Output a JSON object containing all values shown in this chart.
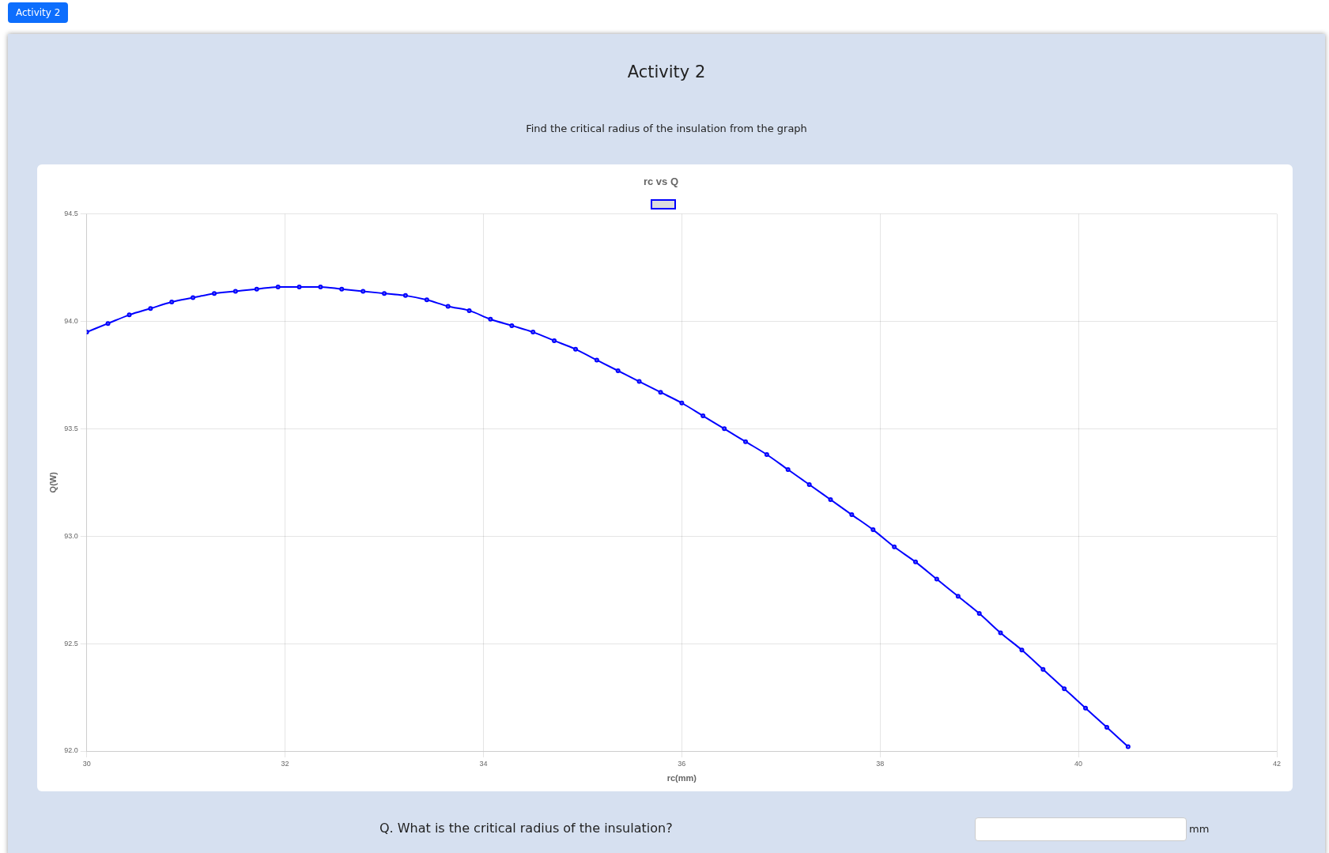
{
  "chart_data": {
    "type": "line",
    "title": "rc vs Q",
    "xlabel": "rc(mm)",
    "ylabel": "Q(W)",
    "annotations": [
      "Activity 2",
      "Activity 2",
      "Find the critical radius of the insulation from the graph",
      "Q. What is the critical radius of the insulation?",
      "mm"
    ],
    "x": [
      30,
      30.214,
      30.429,
      30.643,
      30.857,
      31.071,
      31.286,
      31.5,
      31.714,
      31.929,
      32.143,
      32.357,
      32.571,
      32.786,
      33,
      33.214,
      33.429,
      33.643,
      33.857,
      34.071,
      34.286,
      34.5,
      34.714,
      34.929,
      35.143,
      35.357,
      35.571,
      35.786,
      36,
      36.214,
      36.429,
      36.643,
      36.857,
      37.071,
      37.286,
      37.5,
      37.714,
      37.929,
      38.143,
      38.357,
      38.571,
      38.786,
      39,
      39.214,
      39.429,
      39.643,
      39.857,
      40.071,
      40.286,
      40.5
    ],
    "series": [
      {
        "color": "#0000ff",
        "values": [
          93.95,
          93.99,
          94.03,
          94.06,
          94.09,
          94.11,
          94.13,
          94.14,
          94.15,
          94.16,
          94.16,
          94.16,
          94.15,
          94.14,
          94.13,
          94.12,
          94.1,
          94.07,
          94.05,
          94.01,
          93.98,
          93.95,
          93.91,
          93.87,
          93.82,
          93.77,
          93.72,
          93.67,
          93.62,
          93.56,
          93.5,
          93.44,
          93.38,
          93.31,
          93.24,
          93.17,
          93.1,
          93.03,
          92.95,
          92.88,
          92.8,
          92.72,
          92.64,
          92.55,
          92.47,
          92.38,
          92.29,
          92.2,
          92.11,
          92.02
        ]
      }
    ],
    "xlim": [
      30,
      42
    ],
    "xticks": [
      30,
      32,
      34,
      36,
      38,
      40,
      42
    ],
    "ylim": [
      92,
      94.5
    ],
    "yticks": [
      {
        "value": 92,
        "label": "92.0"
      },
      92.5,
      {
        "value": 93,
        "label": "93.0"
      },
      93.5,
      {
        "value": 94,
        "label": "94.0"
      },
      94.5
    ],
    "grid": true,
    "marker": "circle",
    "line_style": "solid"
  }
}
